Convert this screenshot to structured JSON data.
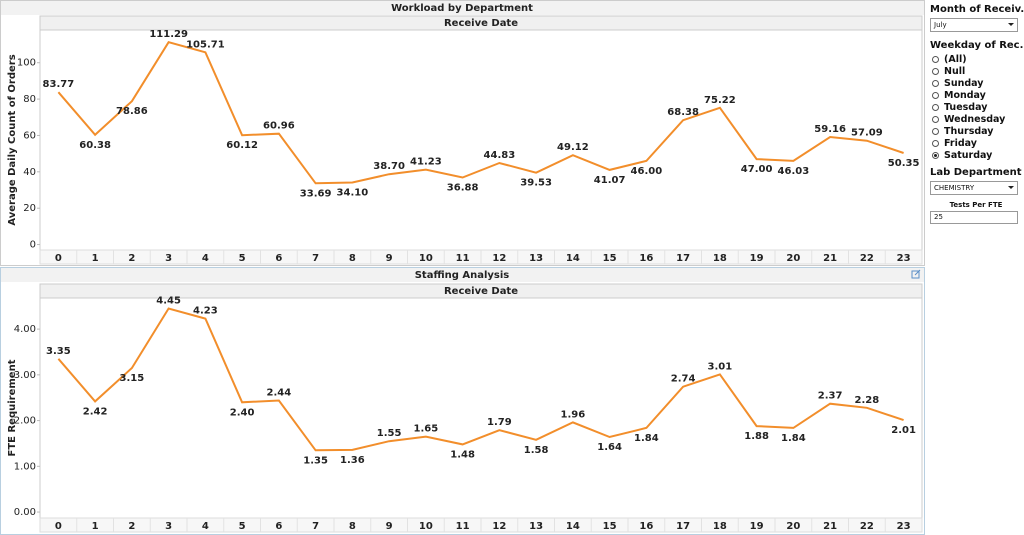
{
  "chart_data": [
    {
      "type": "line",
      "title": "Workload by Department",
      "x_header": "Receive Date",
      "y_label": "Average Daily Count of Orders",
      "categories": [
        "0",
        "1",
        "2",
        "3",
        "4",
        "5",
        "6",
        "7",
        "8",
        "9",
        "10",
        "11",
        "12",
        "13",
        "14",
        "15",
        "16",
        "17",
        "18",
        "19",
        "20",
        "21",
        "22",
        "23"
      ],
      "values": [
        83.77,
        60.38,
        78.86,
        111.29,
        105.71,
        60.12,
        60.96,
        33.69,
        34.1,
        38.7,
        41.23,
        36.88,
        44.83,
        39.53,
        49.12,
        41.07,
        46.0,
        68.38,
        75.22,
        47.0,
        46.03,
        59.16,
        57.09,
        50.35
      ],
      "value_labels": [
        "83.77",
        "60.38",
        "78.86",
        "111.29",
        "105.71",
        "60.12",
        "60.96",
        "33.69",
        "34.10",
        "38.70",
        "41.23",
        "36.88",
        "44.83",
        "39.53",
        "49.12",
        "41.07",
        "46.00",
        "68.38",
        "75.22",
        "47.00",
        "46.03",
        "59.16",
        "57.09",
        "50.35"
      ],
      "color": "#f28e2b",
      "ylim": [
        -3,
        118
      ],
      "yticks": [
        0,
        20,
        40,
        60,
        80,
        100
      ],
      "grid": false
    },
    {
      "type": "line",
      "title": "Staffing Analysis",
      "x_header": "Receive Date",
      "y_label": "FTE Requirement",
      "categories": [
        "0",
        "1",
        "2",
        "3",
        "4",
        "5",
        "6",
        "7",
        "8",
        "9",
        "10",
        "11",
        "12",
        "13",
        "14",
        "15",
        "16",
        "17",
        "18",
        "19",
        "20",
        "21",
        "22",
        "23"
      ],
      "values": [
        3.35,
        2.42,
        3.15,
        4.45,
        4.23,
        2.4,
        2.44,
        1.35,
        1.36,
        1.55,
        1.65,
        1.48,
        1.79,
        1.58,
        1.96,
        1.64,
        1.84,
        2.74,
        3.01,
        1.88,
        1.84,
        2.37,
        2.28,
        2.01
      ],
      "value_labels": [
        "3.35",
        "2.42",
        "3.15",
        "4.45",
        "4.23",
        "2.40",
        "2.44",
        "1.35",
        "1.36",
        "1.55",
        "1.65",
        "1.48",
        "1.79",
        "1.58",
        "1.96",
        "1.64",
        "1.84",
        "2.74",
        "3.01",
        "1.88",
        "1.84",
        "2.37",
        "2.28",
        "2.01"
      ],
      "color": "#f28e2b",
      "ylim": [
        -0.13,
        4.68
      ],
      "yticks": [
        {
          "value": 0,
          "label": "0.00"
        },
        {
          "value": 1,
          "label": "1.00"
        },
        {
          "value": 2,
          "label": "2.00"
        },
        {
          "value": 3,
          "label": "3.00"
        },
        {
          "value": 4,
          "label": "4.00"
        }
      ],
      "grid": false
    }
  ],
  "filters": {
    "month": {
      "title": "Month of Receiv..",
      "selected": "July"
    },
    "weekday": {
      "title": "Weekday of Rec..",
      "options": [
        "(All)",
        "Null",
        "Sunday",
        "Monday",
        "Tuesday",
        "Wednesday",
        "Thursday",
        "Friday",
        "Saturday"
      ],
      "selected_index": 8
    },
    "department": {
      "title": "Lab Department ..",
      "selected": "CHEMISTRY"
    },
    "tests_per_fte": {
      "title": "Tests Per FTE",
      "value": "25"
    }
  }
}
